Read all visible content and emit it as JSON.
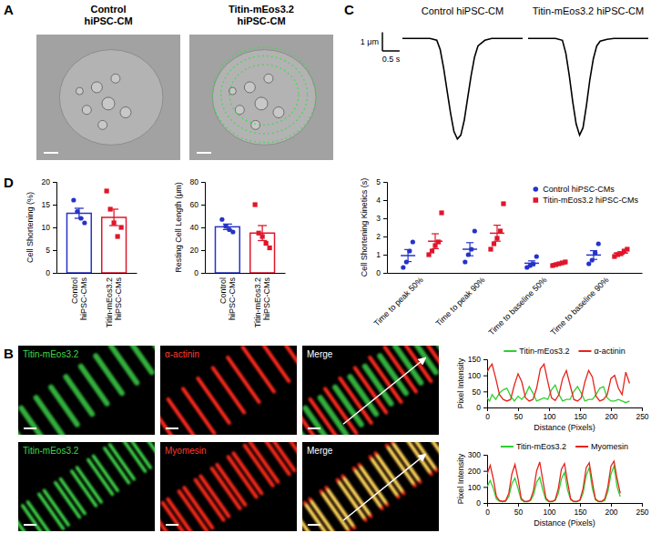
{
  "figure": {
    "panels": [
      "A",
      "B",
      "C",
      "D"
    ],
    "image_titles": [
      "Control hiPSC-CM",
      "Titin-mEos3.2 hiPSC-CM"
    ],
    "channel_labels": [
      [
        "Titin-mEos3.2",
        "α-actinin",
        "Merge"
      ],
      [
        "Titin-mEos3.2",
        "Myomesin",
        "Merge"
      ]
    ]
  },
  "chart_data": [
    {
      "type": "line",
      "title": "Control hiPSC-CM",
      "color": "#000000",
      "tick_labels": false,
      "x": [
        0,
        0.8,
        1.0,
        1.1,
        1.2,
        1.3,
        1.4,
        1.5,
        1.6,
        1.7,
        1.8,
        1.9,
        2.0,
        2.1,
        2.2,
        2.4,
        2.6,
        3.0,
        3.5
      ],
      "values": [
        0,
        0,
        -0.1,
        -0.6,
        -1.6,
        -2.8,
        -4.0,
        -5.0,
        -5.4,
        -5.2,
        -4.4,
        -3.2,
        -2.0,
        -1.0,
        -0.4,
        -0.1,
        0,
        0,
        0
      ],
      "xlim": [
        0,
        3.5
      ],
      "ylim": [
        -6,
        0.5
      ],
      "scale_bar": {
        "x": 0.5,
        "x_label": "0.5 s",
        "y": 1,
        "y_label": "1 μm"
      }
    },
    {
      "type": "line",
      "title": "Titin-mEos3.2 hiPSC-CM",
      "color": "#000000",
      "tick_labels": false,
      "x": [
        0,
        0.8,
        1.0,
        1.1,
        1.2,
        1.3,
        1.4,
        1.5,
        1.6,
        1.7,
        1.8,
        1.9,
        2.0,
        2.1,
        2.3,
        2.5,
        3.0,
        3.5
      ],
      "values": [
        0,
        0,
        -0.1,
        -0.8,
        -2.0,
        -3.4,
        -4.6,
        -5.2,
        -4.8,
        -3.6,
        -2.2,
        -1.1,
        -0.4,
        -0.15,
        -0.05,
        0,
        0,
        0
      ],
      "xlim": [
        0,
        3.5
      ],
      "ylim": [
        -6,
        0.5
      ]
    },
    {
      "type": "bar",
      "y_label": "Cell Shortening (%)",
      "categories": [
        "Control hiPSC-CMs",
        "Titin-mEos3.2 hiPSC-CMs"
      ],
      "values": [
        13.1,
        12.2
      ],
      "error": [
        1.1,
        1.8
      ],
      "points": [
        [
          16,
          13.5,
          12,
          11
        ],
        [
          18,
          14,
          11,
          8,
          10
        ]
      ],
      "colors": [
        "#2533c9",
        "#e0162b"
      ],
      "ylim": [
        0,
        20
      ],
      "yticks": [
        0,
        5,
        10,
        15,
        20
      ]
    },
    {
      "type": "bar",
      "y_label": "Resting Cell Length (μm)",
      "categories": [
        "Control hiPSC-CMs",
        "Titin-mEos3.2 hiPSC-CMs"
      ],
      "values": [
        40.5,
        35.0
      ],
      "error": [
        2.4,
        6.6
      ],
      "points": [
        [
          47,
          41,
          38,
          36
        ],
        [
          60,
          35,
          32,
          26,
          22
        ]
      ],
      "colors": [
        "#2533c9",
        "#e0162b"
      ],
      "ylim": [
        0,
        80
      ],
      "yticks": [
        0,
        20,
        40,
        60,
        80
      ]
    },
    {
      "type": "dot_plot",
      "y_label": "Cell Shortening Kinetics (s)",
      "legend": "upper right",
      "categories": [
        "Time to peak 50%",
        "Time to peak 90%",
        "Time to baseline 50%",
        "Time to baseline 90%"
      ],
      "series": [
        {
          "name": "Control hiPSC-CMs",
          "color": "#2533c9",
          "marker": "circle",
          "values": [
            0.95,
            1.3,
            0.53,
            0.98
          ],
          "error": [
            0.33,
            0.36,
            0.13,
            0.24
          ],
          "points": [
            [
              0.3,
              0.6,
              1.2,
              1.7
            ],
            [
              0.6,
              1.0,
              1.3,
              2.3
            ],
            [
              0.3,
              0.4,
              0.5,
              0.9
            ],
            [
              0.5,
              0.7,
              1.1,
              1.6
            ]
          ]
        },
        {
          "name": "Titin-mEos3.2 hiPSC-CMs",
          "color": "#e0162b",
          "marker": "square",
          "values": [
            1.74,
            2.18,
            0.5,
            1.09
          ],
          "error": [
            0.41,
            0.44,
            0.04,
            0.07
          ],
          "points": [
            [
              1.0,
              1.2,
              1.5,
              1.7,
              3.3
            ],
            [
              1.3,
              1.6,
              1.9,
              2.3,
              3.8
            ],
            [
              0.4,
              0.45,
              0.5,
              0.55,
              0.6
            ],
            [
              0.9,
              1.0,
              1.05,
              1.2,
              1.3
            ]
          ]
        }
      ],
      "ylim": [
        0,
        5
      ],
      "yticks": [
        0,
        1,
        2,
        3,
        4,
        5
      ]
    },
    {
      "type": "line",
      "x_label": "Distance (Pixels)",
      "y_label": "Pixel Intensity",
      "legend": "top",
      "x": [
        0,
        4,
        8,
        14,
        20,
        26,
        32,
        38,
        44,
        50,
        56,
        62,
        68,
        74,
        80,
        86,
        92,
        98,
        104,
        110,
        116,
        122,
        128,
        134,
        140,
        146,
        152,
        158,
        164,
        170,
        176,
        182,
        188,
        194,
        200,
        206,
        212,
        218,
        224,
        230
      ],
      "series": [
        {
          "name": "Titin-mEos3.2",
          "color": "#2fcf2f",
          "values": [
            30,
            20,
            40,
            25,
            45,
            55,
            60,
            35,
            20,
            35,
            25,
            40,
            65,
            45,
            20,
            25,
            30,
            25,
            55,
            70,
            40,
            20,
            25,
            25,
            50,
            65,
            45,
            20,
            25,
            25,
            40,
            60,
            65,
            30,
            20,
            20,
            25,
            20,
            15,
            20
          ]
        },
        {
          "name": "α-actinin",
          "color": "#e8231c",
          "values": [
            110,
            125,
            135,
            90,
            40,
            25,
            20,
            25,
            70,
            105,
            80,
            30,
            20,
            25,
            60,
            120,
            135,
            80,
            30,
            22,
            40,
            90,
            115,
            70,
            25,
            20,
            30,
            80,
            115,
            95,
            35,
            20,
            25,
            40,
            90,
            100,
            60,
            40,
            110,
            75
          ]
        }
      ],
      "xlim": [
        0,
        250
      ],
      "xticks": [
        0,
        50,
        100,
        150,
        200,
        250
      ],
      "ylim": [
        0,
        150
      ],
      "yticks": [
        0,
        50,
        100,
        150
      ]
    },
    {
      "type": "line",
      "x_label": "Distance (Pixels)",
      "y_label": "Pixel Intensity",
      "legend": "top",
      "x": [
        0,
        5,
        10,
        15,
        20,
        25,
        30,
        35,
        40,
        45,
        50,
        55,
        60,
        65,
        70,
        75,
        80,
        85,
        90,
        95,
        100,
        105,
        110,
        115,
        120,
        125,
        130,
        135,
        140,
        145,
        150,
        155,
        160,
        165,
        170,
        175,
        180,
        185,
        190,
        195,
        200,
        205,
        210,
        215
      ],
      "series": [
        {
          "name": "Titin-mEos3.2",
          "color": "#2fcf2f",
          "values": [
            100,
            140,
            90,
            25,
            10,
            8,
            10,
            40,
            120,
            155,
            90,
            20,
            8,
            8,
            15,
            50,
            130,
            160,
            80,
            20,
            8,
            8,
            15,
            60,
            150,
            190,
            80,
            20,
            8,
            8,
            15,
            60,
            170,
            220,
            90,
            20,
            8,
            8,
            15,
            70,
            180,
            230,
            100,
            40
          ]
        },
        {
          "name": "Myomesin",
          "color": "#e8231c",
          "values": [
            180,
            235,
            150,
            40,
            15,
            10,
            15,
            60,
            180,
            240,
            150,
            30,
            10,
            10,
            20,
            80,
            200,
            255,
            140,
            30,
            10,
            10,
            20,
            90,
            210,
            245,
            130,
            25,
            10,
            10,
            20,
            90,
            220,
            250,
            130,
            25,
            10,
            10,
            25,
            100,
            230,
            260,
            150,
            60
          ]
        }
      ],
      "xlim": [
        0,
        250
      ],
      "xticks": [
        0,
        50,
        100,
        150,
        200,
        250
      ],
      "ylim": [
        0,
        300
      ],
      "yticks": [
        0,
        100,
        200,
        300
      ]
    }
  ]
}
